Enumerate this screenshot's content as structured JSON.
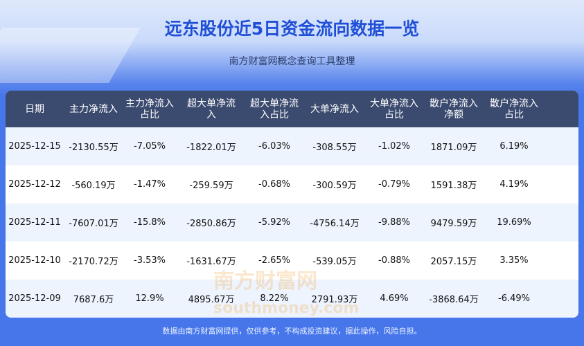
{
  "title": "远东股份近5日资金流向数据一览",
  "subtitle": "南方财富网概念查询工具整理",
  "watermark": "南方财富网 southmoney.com",
  "headers": [
    "日期",
    "主力净流入",
    "主力净流入占比",
    "超大单净流入",
    "超大单净流入占比",
    "大单净流入",
    "大单净流入占比",
    "散户净流入净额",
    "散户净流入占比"
  ],
  "rows": [
    [
      "2025-12-15",
      "-2130.55万",
      "-7.05%",
      "-1822.01万",
      "-6.03%",
      "-308.55万",
      "-1.02%",
      "1871.09万",
      "6.19%"
    ],
    [
      "2025-12-12",
      "-560.19万",
      "-1.47%",
      "-259.59万",
      "-0.68%",
      "-300.59万",
      "-0.79%",
      "1591.38万",
      "4.19%"
    ],
    [
      "2025-12-11",
      "-7607.01万",
      "-15.8%",
      "-2850.86万",
      "-5.92%",
      "-4756.14万",
      "-9.88%",
      "9479.59万",
      "19.69%"
    ],
    [
      "2025-12-10",
      "-2170.72万",
      "-3.53%",
      "-1631.67万",
      "-2.65%",
      "-539.05万",
      "-0.88%",
      "2057.15万",
      "3.35%"
    ],
    [
      "2025-12-09",
      "7687.6万",
      "12.9%",
      "4895.67万",
      "8.22%",
      "2791.93万",
      "4.69%",
      "-3868.64万",
      "-6.49%"
    ]
  ],
  "footer": "数据由南方财富网提供，仅供参考，不构成投资建议，据此操作，风险自担。"
}
